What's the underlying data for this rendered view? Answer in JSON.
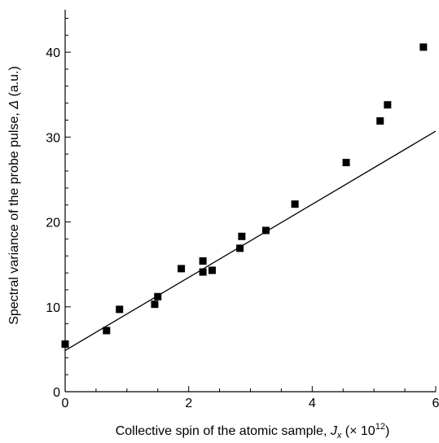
{
  "chart_data": {
    "type": "scatter",
    "xlabel_main": "Collective spin of the atomic sample, ",
    "xlabel_symbol": "J",
    "xlabel_subscript": "x",
    "xlabel_unit_prefix": " (× 10",
    "xlabel_unit_exp": "12",
    "xlabel_unit_suffix": ")",
    "ylabel_main": "Spectral variance of the probe pulse, ",
    "ylabel_symbol": "Δ",
    "ylabel_unit": " (a.u.)",
    "xlim": [
      0,
      6
    ],
    "ylim": [
      0,
      45
    ],
    "xticks": [
      0,
      2,
      4,
      6
    ],
    "yticks": [
      0,
      10,
      20,
      30,
      40
    ],
    "grid": false,
    "series": [
      {
        "marker": "square",
        "color": "#000000",
        "points": [
          {
            "x": 0.0,
            "y": 5.6
          },
          {
            "x": 0.67,
            "y": 7.2
          },
          {
            "x": 0.88,
            "y": 9.7
          },
          {
            "x": 1.45,
            "y": 10.3
          },
          {
            "x": 1.5,
            "y": 11.2
          },
          {
            "x": 1.88,
            "y": 14.5
          },
          {
            "x": 2.23,
            "y": 15.4
          },
          {
            "x": 2.23,
            "y": 14.1
          },
          {
            "x": 2.38,
            "y": 14.3
          },
          {
            "x": 2.83,
            "y": 16.9
          },
          {
            "x": 2.86,
            "y": 18.3
          },
          {
            "x": 3.25,
            "y": 19.0
          },
          {
            "x": 3.72,
            "y": 22.1
          },
          {
            "x": 4.55,
            "y": 27.0
          },
          {
            "x": 5.1,
            "y": 31.9
          },
          {
            "x": 5.22,
            "y": 33.8
          },
          {
            "x": 5.8,
            "y": 40.6
          }
        ]
      }
    ],
    "fit_line": {
      "x": [
        0,
        6
      ],
      "y": [
        4.85,
        30.7
      ],
      "color": "#000000"
    }
  }
}
